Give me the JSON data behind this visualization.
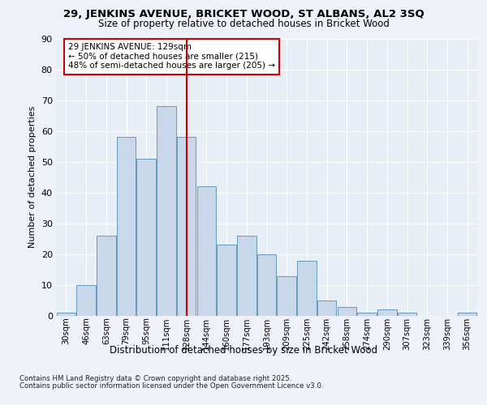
{
  "title1": "29, JENKINS AVENUE, BRICKET WOOD, ST ALBANS, AL2 3SQ",
  "title2": "Size of property relative to detached houses in Bricket Wood",
  "xlabel": "Distribution of detached houses by size in Bricket Wood",
  "ylabel": "Number of detached properties",
  "categories": [
    "30sqm",
    "46sqm",
    "63sqm",
    "79sqm",
    "95sqm",
    "111sqm",
    "128sqm",
    "144sqm",
    "160sqm",
    "177sqm",
    "193sqm",
    "209sqm",
    "225sqm",
    "242sqm",
    "258sqm",
    "274sqm",
    "290sqm",
    "307sqm",
    "323sqm",
    "339sqm",
    "356sqm"
  ],
  "values": [
    1,
    10,
    26,
    58,
    51,
    68,
    58,
    42,
    23,
    26,
    20,
    13,
    18,
    5,
    3,
    1,
    2,
    1,
    0,
    0,
    1
  ],
  "bar_color": "#c8d8ea",
  "bar_edge_color": "#6699bb",
  "vline_color": "#cc0000",
  "annotation_text": "29 JENKINS AVENUE: 129sqm\n← 50% of detached houses are smaller (215)\n48% of semi-detached houses are larger (205) →",
  "annotation_box_color": "#ffffff",
  "annotation_box_edge": "#cc0000",
  "bg_color": "#e8eef5",
  "grid_color": "#ffffff",
  "ylim": [
    0,
    90
  ],
  "yticks": [
    0,
    10,
    20,
    30,
    40,
    50,
    60,
    70,
    80,
    90
  ],
  "footer1": "Contains HM Land Registry data © Crown copyright and database right 2025.",
  "footer2": "Contains public sector information licensed under the Open Government Licence v3.0."
}
